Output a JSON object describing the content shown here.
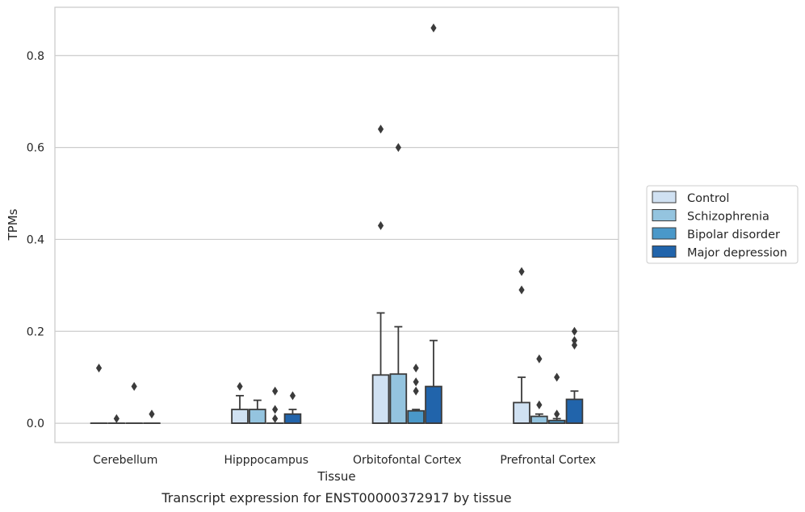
{
  "chart_data": {
    "type": "box",
    "xlabel": "Tissue",
    "ylabel": "TPMs",
    "caption": "Transcript expression for ENST00000372917 by tissue",
    "categories": [
      "Cerebellum",
      "Hipppocampus",
      "Orbitofontal Cortex",
      "Prefrontal Cortex"
    ],
    "ylim": [
      -0.042,
      0.905
    ],
    "yticks": [
      0.0,
      0.2,
      0.4,
      0.6,
      0.8
    ],
    "ytick_labels": [
      "0.0",
      "0.2",
      "0.4",
      "0.6",
      "0.8"
    ],
    "grid": true,
    "legend_position": "right",
    "series": [
      {
        "name": "Control",
        "color": "#d0e1f2",
        "boxes": [
          {
            "q1": 0,
            "median": 0,
            "q3": 0,
            "whisker_low": 0,
            "whisker_high": 0,
            "outliers": [
              0.12
            ]
          },
          {
            "q1": 0,
            "median": 0,
            "q3": 0.03,
            "whisker_low": 0,
            "whisker_high": 0.06,
            "outliers": [
              0.08
            ]
          },
          {
            "q1": 0,
            "median": 0,
            "q3": 0.105,
            "whisker_low": 0,
            "whisker_high": 0.24,
            "outliers": [
              0.43,
              0.64
            ]
          },
          {
            "q1": 0,
            "median": 0,
            "q3": 0.045,
            "whisker_low": 0,
            "whisker_high": 0.1,
            "outliers": [
              0.29,
              0.33
            ]
          }
        ]
      },
      {
        "name": "Schizophrenia",
        "color": "#94c4df",
        "boxes": [
          {
            "q1": 0,
            "median": 0,
            "q3": 0,
            "whisker_low": 0,
            "whisker_high": 0,
            "outliers": [
              0.01
            ]
          },
          {
            "q1": 0,
            "median": 0,
            "q3": 0.03,
            "whisker_low": 0,
            "whisker_high": 0.05,
            "outliers": []
          },
          {
            "q1": 0,
            "median": 0,
            "q3": 0.107,
            "whisker_low": 0,
            "whisker_high": 0.21,
            "outliers": [
              0.6
            ]
          },
          {
            "q1": 0,
            "median": 0,
            "q3": 0.015,
            "whisker_low": 0,
            "whisker_high": 0.02,
            "outliers": [
              0.04,
              0.14
            ]
          }
        ]
      },
      {
        "name": "Bipolar disorder",
        "color": "#4a98c9",
        "boxes": [
          {
            "q1": 0,
            "median": 0,
            "q3": 0,
            "whisker_low": 0,
            "whisker_high": 0,
            "outliers": [
              0.08
            ]
          },
          {
            "q1": 0,
            "median": 0,
            "q3": 0,
            "whisker_low": 0,
            "whisker_high": 0,
            "outliers": [
              0.01,
              0.03,
              0.07
            ]
          },
          {
            "q1": 0,
            "median": 0,
            "q3": 0.027,
            "whisker_low": 0,
            "whisker_high": 0.03,
            "outliers": [
              0.07,
              0.09,
              0.12
            ]
          },
          {
            "q1": 0,
            "median": 0,
            "q3": 0.006,
            "whisker_low": 0,
            "whisker_high": 0.01,
            "outliers": [
              0.02,
              0.1
            ]
          }
        ]
      },
      {
        "name": "Major depression",
        "color": "#2164ab",
        "boxes": [
          {
            "q1": 0,
            "median": 0,
            "q3": 0,
            "whisker_low": 0,
            "whisker_high": 0,
            "outliers": [
              0.02
            ]
          },
          {
            "q1": 0,
            "median": 0,
            "q3": 0.02,
            "whisker_low": 0,
            "whisker_high": 0.03,
            "outliers": [
              0.06
            ]
          },
          {
            "q1": 0,
            "median": 0,
            "q3": 0.08,
            "whisker_low": 0,
            "whisker_high": 0.18,
            "outliers": [
              0.86
            ]
          },
          {
            "q1": 0,
            "median": 0,
            "q3": 0.052,
            "whisker_low": 0,
            "whisker_high": 0.07,
            "outliers": [
              0.17,
              0.18,
              0.2
            ]
          }
        ]
      }
    ]
  }
}
